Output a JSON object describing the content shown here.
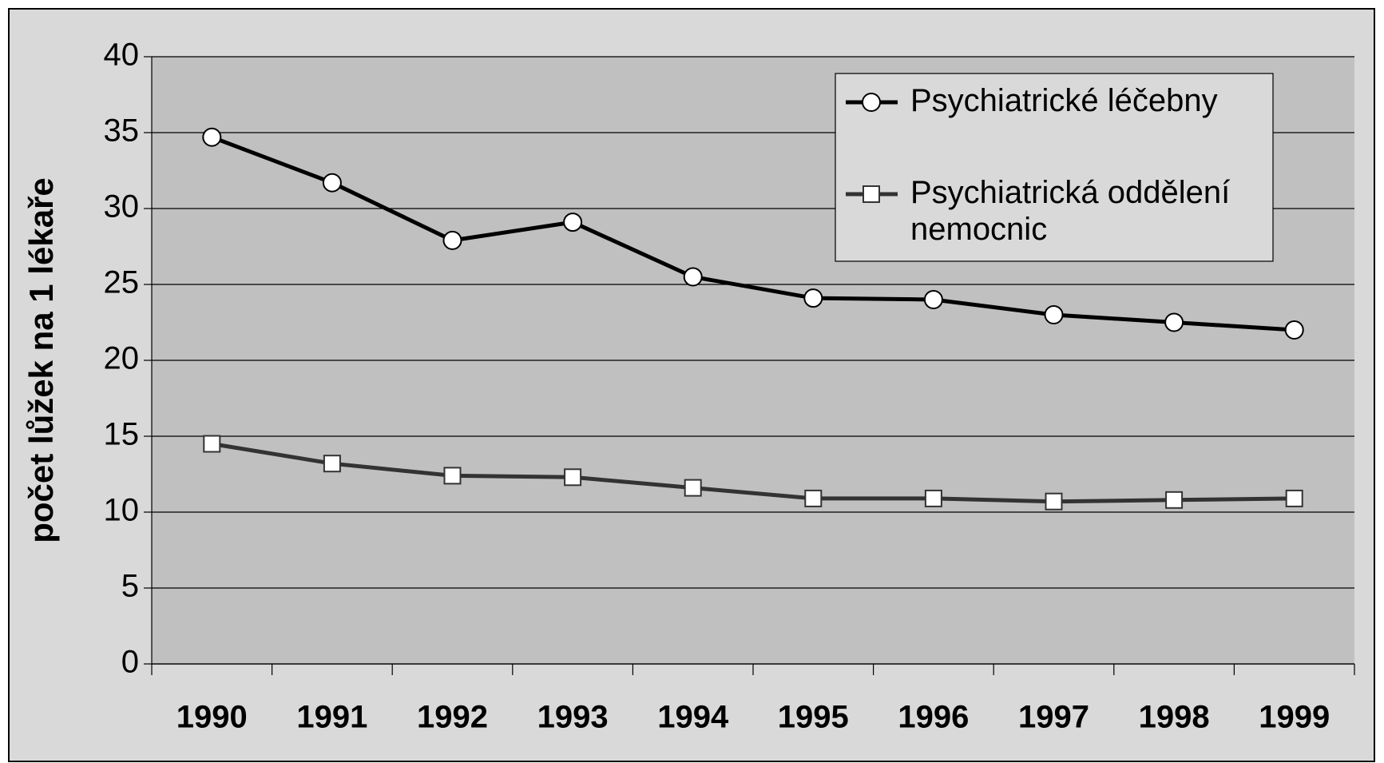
{
  "chart_data": {
    "type": "line",
    "y_label": "počet lůžek na 1 lékaře",
    "categories": [
      "1990",
      "1991",
      "1992",
      "1993",
      "1994",
      "1995",
      "1996",
      "1997",
      "1998",
      "1999"
    ],
    "series": [
      {
        "name": "Psychiatrické léčebny",
        "color": "#000000",
        "marker": "circle",
        "values": [
          34.7,
          31.7,
          27.9,
          29.1,
          25.5,
          24.1,
          24.0,
          23.0,
          22.5,
          22.0
        ]
      },
      {
        "name": "Psychiatrická oddělení nemocnic",
        "color": "#333333",
        "marker": "square",
        "values": [
          14.5,
          13.2,
          12.4,
          12.3,
          11.6,
          10.9,
          10.9,
          10.7,
          10.8,
          10.9
        ]
      }
    ],
    "ylim": [
      0,
      40
    ],
    "yticks": [
      0,
      5,
      10,
      15,
      20,
      25,
      30,
      35,
      40
    ],
    "grid": true
  }
}
